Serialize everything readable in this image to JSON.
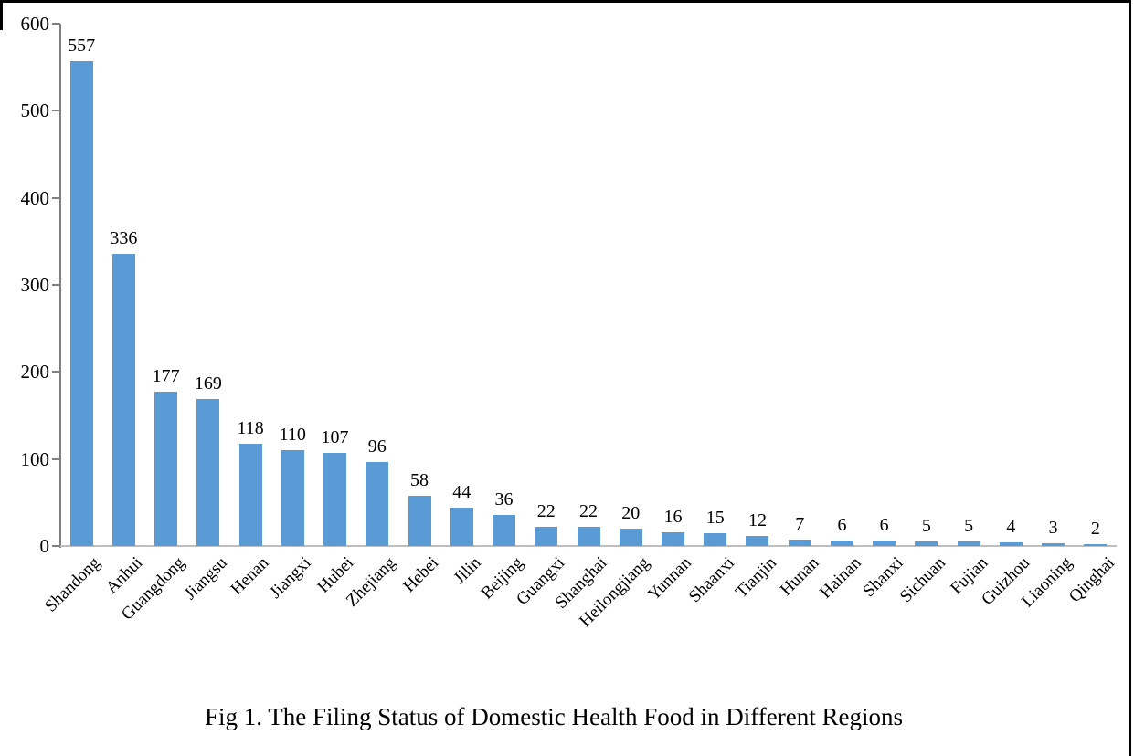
{
  "caption": "Fig 1. The Filing Status of Domestic Health Food in Different Regions",
  "colors": {
    "bar": "#5B9BD5",
    "axis_line": "#808080",
    "baseline": "#BFBFBF",
    "text": "#000000",
    "page_border": "#000000",
    "background": "#FFFFFF"
  },
  "chart_data": {
    "type": "bar",
    "title": "",
    "xlabel": "",
    "ylabel": "",
    "categories": [
      "Shandong",
      "Anhui",
      "Guangdong",
      "Jiangsu",
      "Henan",
      "Jiangxi",
      "Hubei",
      "Zhejiang",
      "Hebei",
      "Jilin",
      "Beijing",
      "Guangxi",
      "Shanghai",
      "Heilongjiang",
      "Yunnan",
      "Shaanxi",
      "Tianjin",
      "Hunan",
      "Hainan",
      "Shanxi",
      "Sichuan",
      "Fujian",
      "Guizhou",
      "Liaoning",
      "Qinghai"
    ],
    "values": [
      557,
      336,
      177,
      169,
      118,
      110,
      107,
      96,
      58,
      44,
      36,
      22,
      22,
      20,
      16,
      15,
      12,
      7,
      6,
      6,
      5,
      5,
      4,
      3,
      2
    ],
    "data_labels": true,
    "ylim": [
      0,
      600
    ],
    "yticks": [
      0,
      100,
      200,
      300,
      400,
      500,
      600
    ],
    "grid": false,
    "legend": "none",
    "x_label_rotation_deg": 45
  }
}
